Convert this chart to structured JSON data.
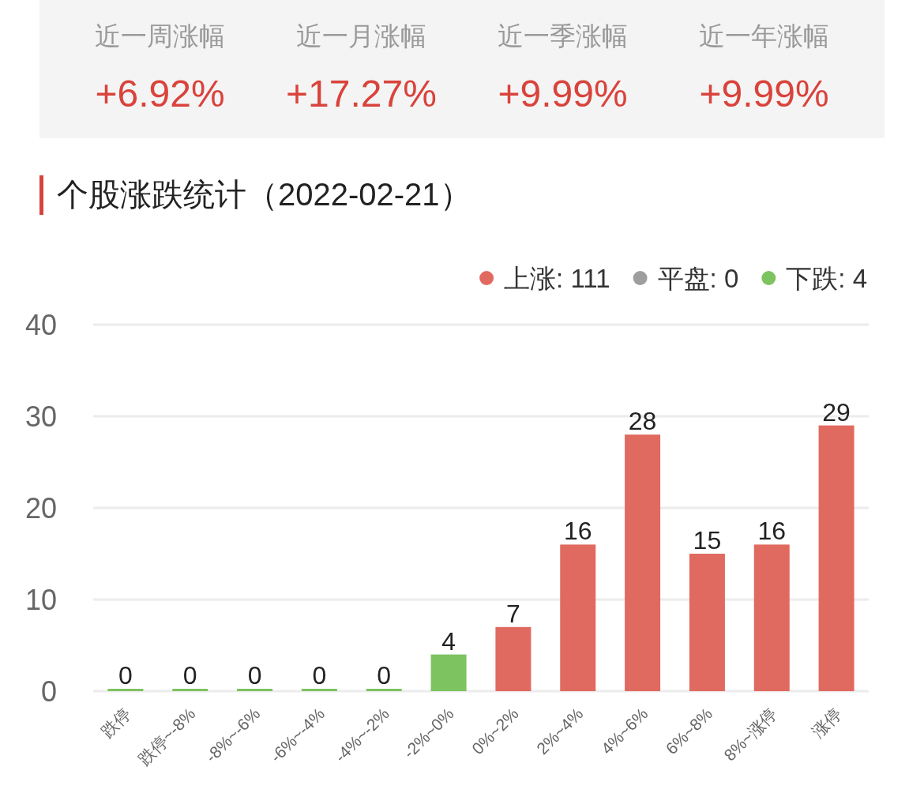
{
  "chart_data": [
    {
      "type": "other",
      "annotations": [
        "近一周涨幅",
        "+6.92%",
        "近一月涨幅",
        "+17.27%",
        "近一季涨幅",
        "+9.99%",
        "近一年涨幅",
        "+9.99%"
      ]
    },
    {
      "type": "bar",
      "title": "个股涨跌统计（2022-02-21）",
      "categories": [
        "跌停",
        "跌停~-8%",
        "-8%~-6%",
        "-6%~-4%",
        "-4%~-2%",
        "-2%~0%",
        "0%~2%",
        "2%~4%",
        "4%~6%",
        "6%~8%",
        "8%~涨停",
        "涨停"
      ],
      "stacked": true,
      "series": [
        {
          "name": "上涨: 111",
          "color": "#e06a5f",
          "values": [
            null,
            null,
            null,
            null,
            null,
            null,
            7,
            16,
            28,
            15,
            16,
            29
          ]
        },
        {
          "name": "平盘: 0",
          "color": "#9e9e9e",
          "values": [
            null,
            null,
            null,
            null,
            null,
            null,
            null,
            null,
            null,
            null,
            null,
            null
          ]
        },
        {
          "name": "下跌: 4",
          "color": "#7dc35f",
          "values": [
            0,
            0,
            0,
            0,
            0,
            4,
            null,
            null,
            null,
            null,
            null,
            null
          ]
        }
      ],
      "ylim": [
        0,
        40
      ],
      "yticks": [
        0,
        10,
        20,
        30,
        40
      ],
      "grid": "y",
      "legend": "top right",
      "data_labels": true
    }
  ]
}
